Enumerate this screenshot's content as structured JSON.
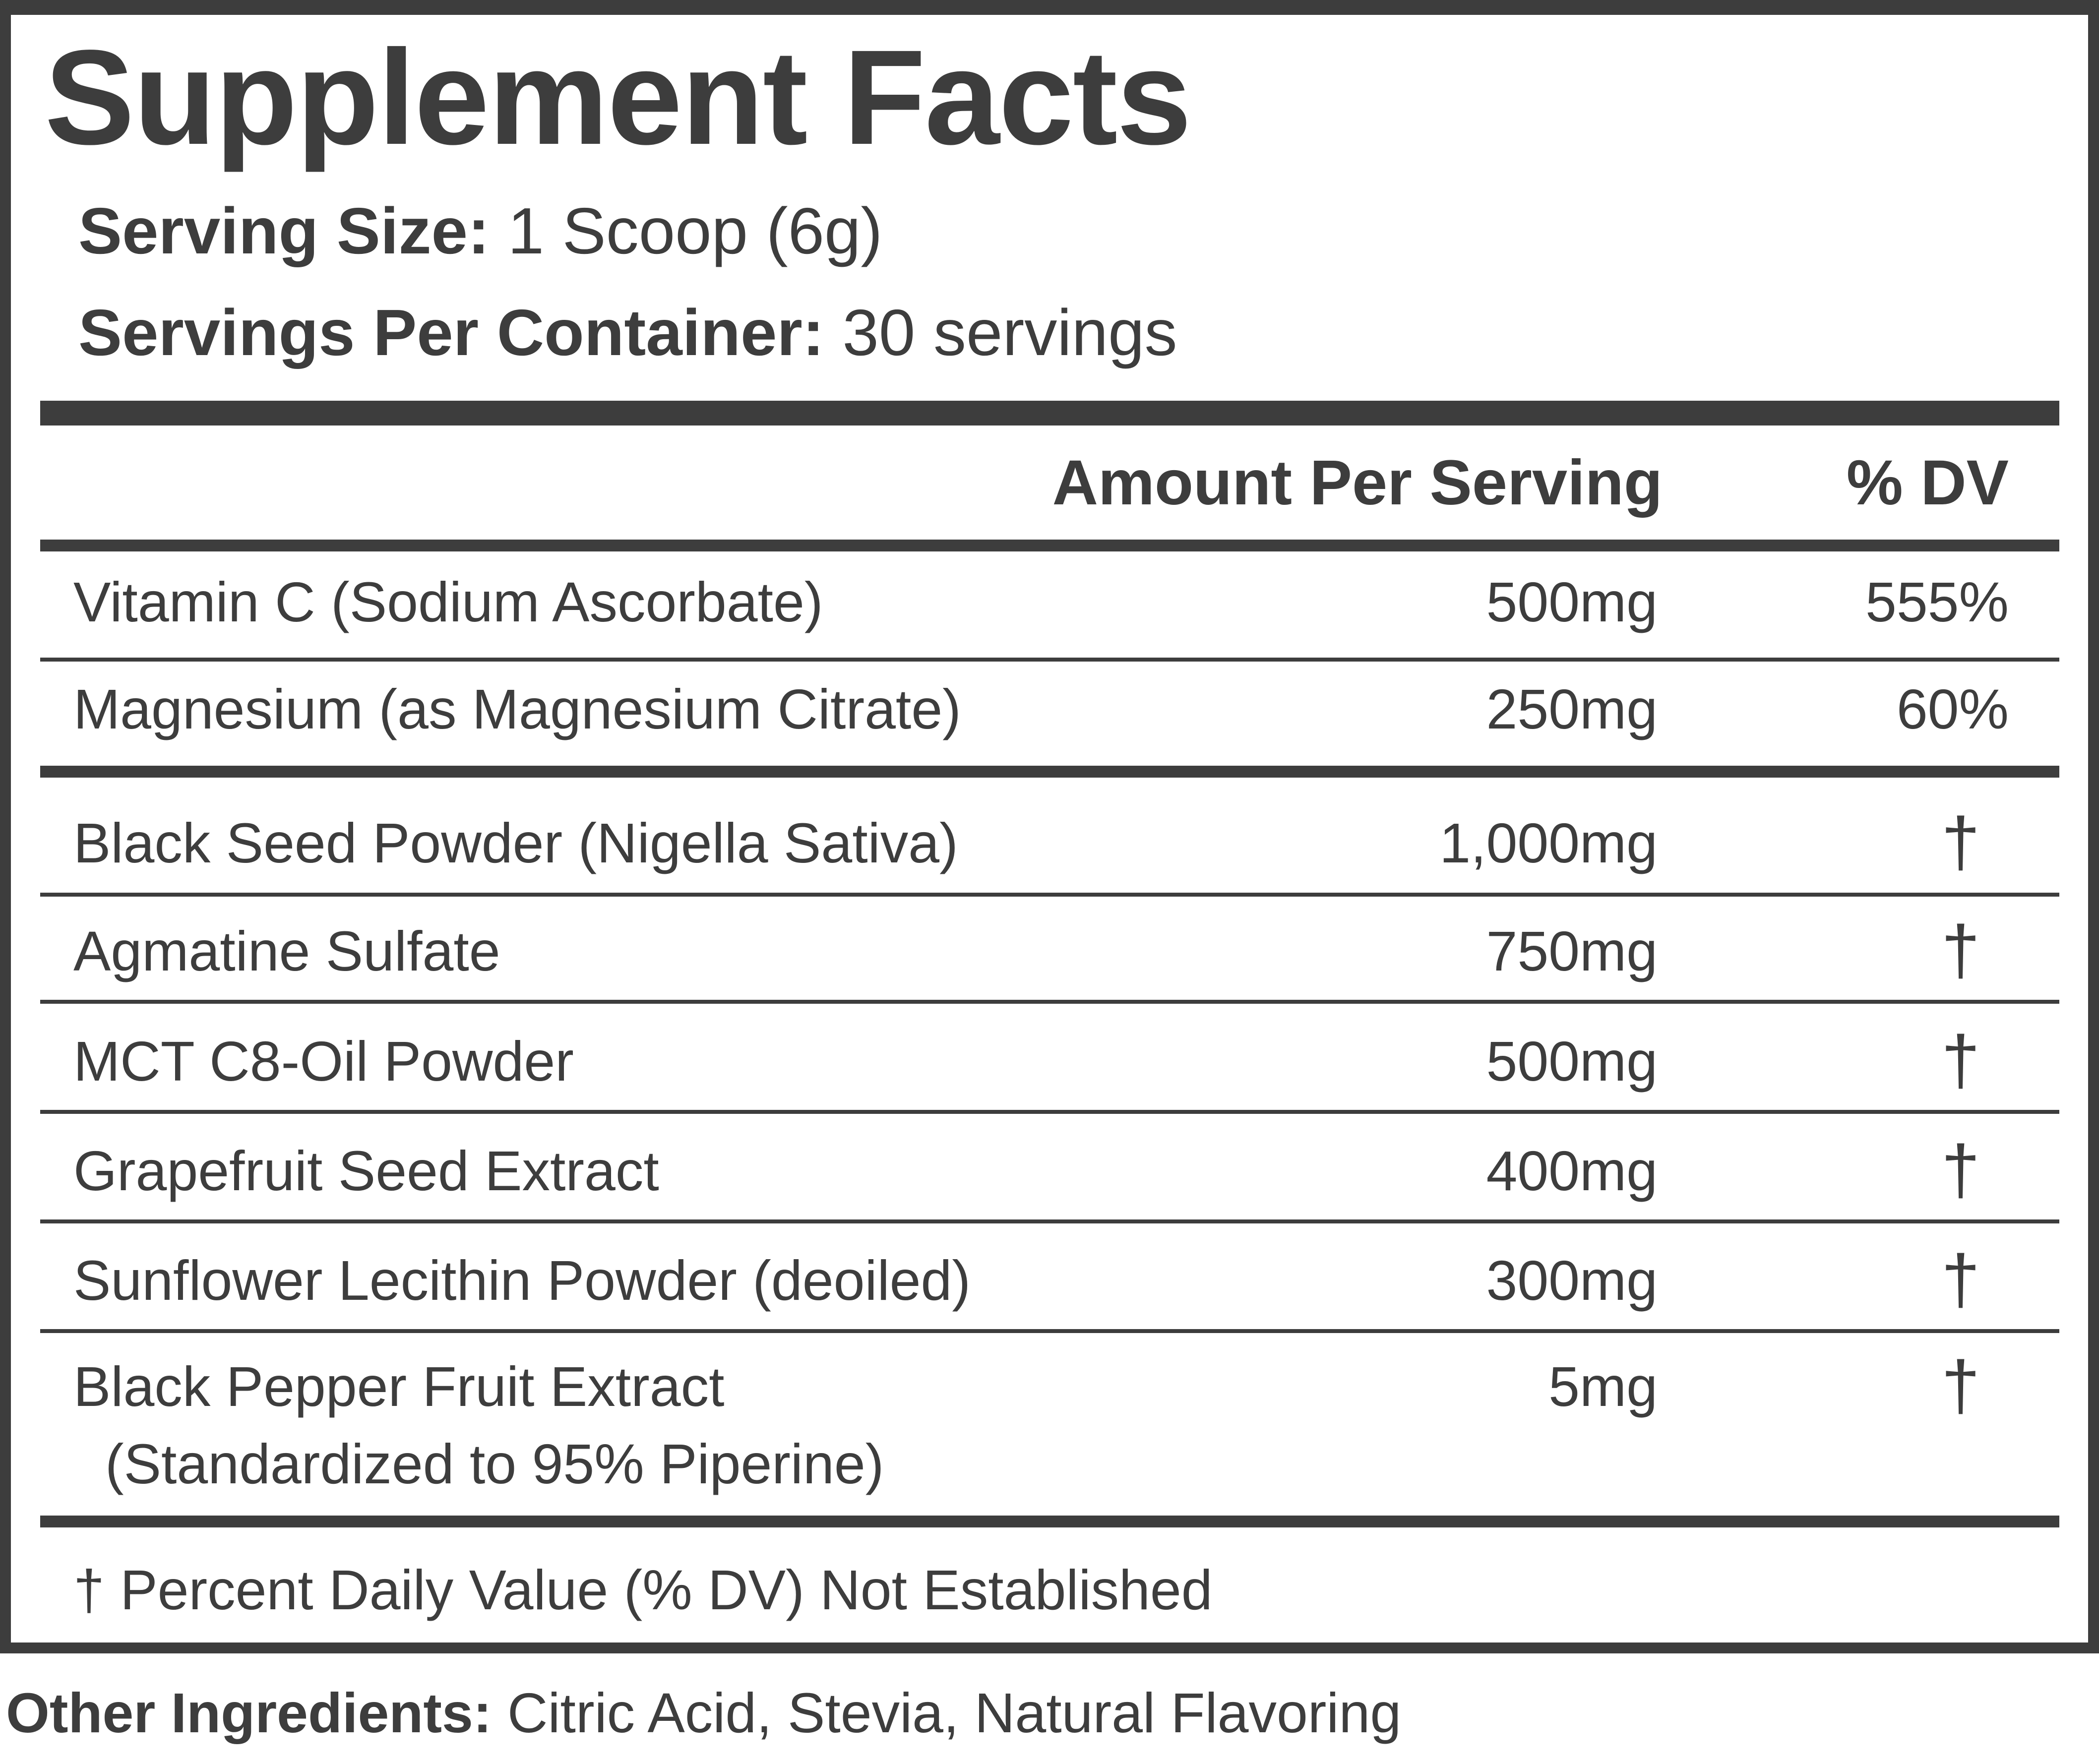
{
  "title": "Supplement Facts",
  "serving_size": {
    "label": "Serving Size:",
    "value": "1 Scoop (6g)"
  },
  "servings_per_container": {
    "label": "Servings Per Container:",
    "value": "30 servings"
  },
  "header": {
    "amount": "Amount Per Serving",
    "dv": "% DV"
  },
  "rows": [
    {
      "name": "Vitamin C (Sodium Ascorbate)",
      "amount": "500mg",
      "dv": "555%"
    },
    {
      "name": "Magnesium (as Magnesium Citrate)",
      "amount": "250mg",
      "dv": "60%"
    },
    {
      "name": "Black Seed Powder (Nigella Sativa)",
      "amount": "1,000mg",
      "dv": "†"
    },
    {
      "name": "Agmatine Sulfate",
      "amount": "750mg",
      "dv": "†"
    },
    {
      "name": "MCT C8-Oil Powder",
      "amount": "500mg",
      "dv": "†"
    },
    {
      "name": "Grapefruit Seed Extract",
      "amount": "400mg",
      "dv": "†"
    },
    {
      "name": "Sunflower Lecithin Powder (deoiled)",
      "amount": "300mg",
      "dv": "†"
    },
    {
      "name": "Black Pepper Fruit Extract",
      "sub": "(Standardized to 95% Piperine)",
      "amount": "5mg",
      "dv": "†"
    }
  ],
  "footnote": "† Percent Daily Value (% DV) Not Established",
  "other_ingredients": {
    "label": "Other Ingredients:",
    "value": "Citric Acid, Stevia, Natural Flavoring"
  },
  "colors": {
    "ink": "#3d3d3d",
    "background": "#ffffff"
  }
}
